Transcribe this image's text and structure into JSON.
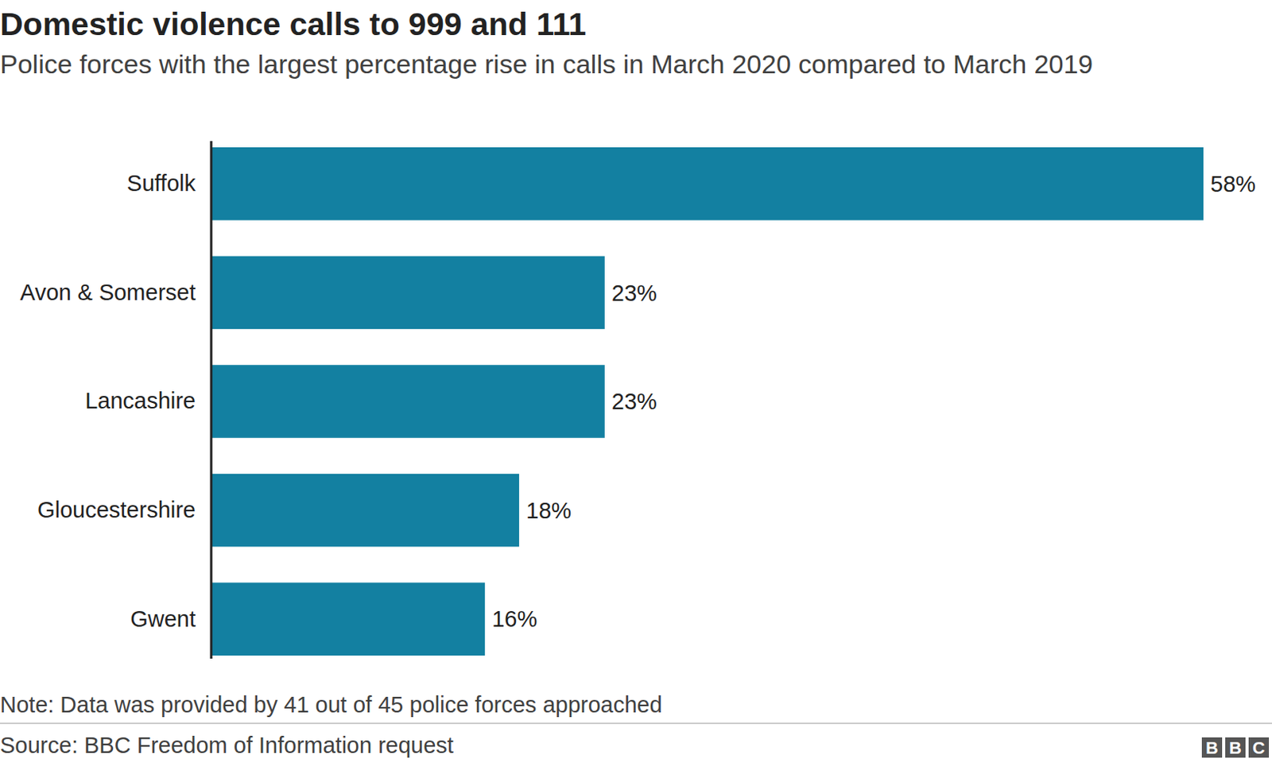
{
  "chart_data": {
    "type": "bar",
    "orientation": "horizontal",
    "title": "Domestic violence calls to 999 and 111",
    "subtitle": "Police forces with the largest percentage rise in calls in March 2020 compared to March 2019",
    "categories": [
      "Suffolk",
      "Avon & Somerset",
      "Lancashire",
      "Gloucestershire",
      "Gwent"
    ],
    "values": [
      58,
      23,
      23,
      18,
      16
    ],
    "value_labels": [
      "58%",
      "23%",
      "23%",
      "18%",
      "16%"
    ],
    "color": "#1380a1",
    "xlim": [
      0,
      58
    ],
    "data_labels": true,
    "tick_labels": "y",
    "grid": false,
    "note": "Note: Data was provided by 41 out of 45 police forces approached",
    "source": "Source: BBC Freedom of Information request",
    "logo": "BBC"
  }
}
